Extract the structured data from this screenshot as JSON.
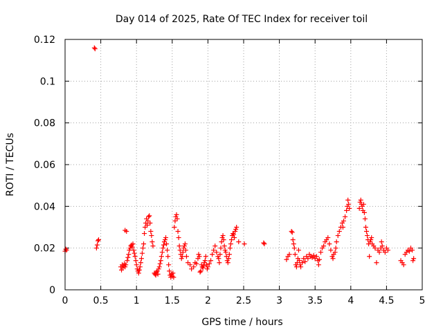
{
  "chart_data": {
    "type": "scatter",
    "title": "Day 014 of 2025, Rate Of TEC Index for receiver toil",
    "xlabel": "GPS time / hours",
    "ylabel": "ROTI / TECUs",
    "xlim": [
      0,
      5
    ],
    "ylim": [
      0,
      0.12
    ],
    "xticks": [
      0,
      0.5,
      1,
      1.5,
      2,
      2.5,
      3,
      3.5,
      4,
      4.5,
      5
    ],
    "xtick_labels": [
      "0",
      "0.5",
      "1",
      "1.5",
      "2",
      "2.5",
      "3",
      "3.5",
      "4",
      "4.5",
      "5"
    ],
    "yticks": [
      0,
      0.02,
      0.04,
      0.06,
      0.08,
      0.1,
      0.12
    ],
    "ytick_labels": [
      "0",
      "0.02",
      "0.04",
      "0.06",
      "0.08",
      "0.1",
      "0.12"
    ],
    "grid": true,
    "marker": "+",
    "color": "#ff0000",
    "series": [
      {
        "name": "ROTI",
        "points": [
          [
            0.0,
            0.0185
          ],
          [
            0.01,
            0.0195
          ],
          [
            0.02,
            0.019
          ],
          [
            0.41,
            0.116
          ],
          [
            0.42,
            0.1155
          ],
          [
            0.44,
            0.02
          ],
          [
            0.45,
            0.0215
          ],
          [
            0.46,
            0.0235
          ],
          [
            0.47,
            0.024
          ],
          [
            0.78,
            0.011
          ],
          [
            0.79,
            0.0095
          ],
          [
            0.8,
            0.012
          ],
          [
            0.81,
            0.0105
          ],
          [
            0.82,
            0.0115
          ],
          [
            0.83,
            0.0125
          ],
          [
            0.84,
            0.011
          ],
          [
            0.85,
            0.012
          ],
          [
            0.84,
            0.0285
          ],
          [
            0.86,
            0.028
          ],
          [
            0.87,
            0.014
          ],
          [
            0.88,
            0.0155
          ],
          [
            0.89,
            0.017
          ],
          [
            0.9,
            0.019
          ],
          [
            0.91,
            0.02
          ],
          [
            0.92,
            0.021
          ],
          [
            0.93,
            0.0215
          ],
          [
            0.94,
            0.0205
          ],
          [
            0.95,
            0.022
          ],
          [
            0.96,
            0.019
          ],
          [
            0.97,
            0.0175
          ],
          [
            0.98,
            0.016
          ],
          [
            0.99,
            0.014
          ],
          [
            1.0,
            0.012
          ],
          [
            1.01,
            0.01
          ],
          [
            1.02,
            0.009
          ],
          [
            1.03,
            0.008
          ],
          [
            1.04,
            0.0095
          ],
          [
            1.05,
            0.011
          ],
          [
            1.06,
            0.013
          ],
          [
            1.07,
            0.015
          ],
          [
            1.08,
            0.0175
          ],
          [
            1.09,
            0.02
          ],
          [
            1.1,
            0.022
          ],
          [
            1.11,
            0.027
          ],
          [
            1.12,
            0.03
          ],
          [
            1.13,
            0.032
          ],
          [
            1.14,
            0.034
          ],
          [
            1.15,
            0.031
          ],
          [
            1.16,
            0.033
          ],
          [
            1.17,
            0.035
          ],
          [
            1.18,
            0.0355
          ],
          [
            1.19,
            0.032
          ],
          [
            1.2,
            0.028
          ],
          [
            1.21,
            0.026
          ],
          [
            1.22,
            0.023
          ],
          [
            1.23,
            0.021
          ],
          [
            1.25,
            0.008
          ],
          [
            1.26,
            0.0075
          ],
          [
            1.27,
            0.007
          ],
          [
            1.28,
            0.0085
          ],
          [
            1.29,
            0.009
          ],
          [
            1.3,
            0.0075
          ],
          [
            1.31,
            0.01
          ],
          [
            1.32,
            0.011
          ],
          [
            1.33,
            0.0125
          ],
          [
            1.34,
            0.014
          ],
          [
            1.35,
            0.016
          ],
          [
            1.36,
            0.018
          ],
          [
            1.37,
            0.02
          ],
          [
            1.38,
            0.0215
          ],
          [
            1.39,
            0.023
          ],
          [
            1.4,
            0.024
          ],
          [
            1.41,
            0.025
          ],
          [
            1.42,
            0.022
          ],
          [
            1.43,
            0.019
          ],
          [
            1.44,
            0.016
          ],
          [
            1.45,
            0.012
          ],
          [
            1.46,
            0.009
          ],
          [
            1.47,
            0.007
          ],
          [
            1.48,
            0.006
          ],
          [
            1.49,
            0.0075
          ],
          [
            1.5,
            0.0065
          ],
          [
            1.51,
            0.008
          ],
          [
            1.52,
            0.006
          ],
          [
            1.53,
            0.03
          ],
          [
            1.54,
            0.033
          ],
          [
            1.55,
            0.035
          ],
          [
            1.56,
            0.036
          ],
          [
            1.57,
            0.034
          ],
          [
            1.58,
            0.028
          ],
          [
            1.59,
            0.025
          ],
          [
            1.6,
            0.021
          ],
          [
            1.61,
            0.019
          ],
          [
            1.62,
            0.017
          ],
          [
            1.63,
            0.015
          ],
          [
            1.64,
            0.016
          ],
          [
            1.65,
            0.018
          ],
          [
            1.66,
            0.02
          ],
          [
            1.67,
            0.021
          ],
          [
            1.68,
            0.022
          ],
          [
            1.69,
            0.019
          ],
          [
            1.7,
            0.016
          ],
          [
            1.72,
            0.013
          ],
          [
            1.75,
            0.012
          ],
          [
            1.77,
            0.01
          ],
          [
            1.8,
            0.011
          ],
          [
            1.82,
            0.013
          ],
          [
            1.84,
            0.0125
          ],
          [
            1.86,
            0.015
          ],
          [
            1.87,
            0.017
          ],
          [
            1.88,
            0.016
          ],
          [
            1.89,
            0.0085
          ],
          [
            1.9,
            0.009
          ],
          [
            1.91,
            0.012
          ],
          [
            1.92,
            0.011
          ],
          [
            1.93,
            0.0105
          ],
          [
            1.94,
            0.0115
          ],
          [
            1.95,
            0.013
          ],
          [
            1.96,
            0.014
          ],
          [
            1.97,
            0.016
          ],
          [
            1.98,
            0.012
          ],
          [
            1.99,
            0.01
          ],
          [
            2.0,
            0.011
          ],
          [
            2.02,
            0.0125
          ],
          [
            2.04,
            0.014
          ],
          [
            2.06,
            0.017
          ],
          [
            2.08,
            0.019
          ],
          [
            2.1,
            0.021
          ],
          [
            2.12,
            0.018
          ],
          [
            2.14,
            0.016
          ],
          [
            2.15,
            0.015
          ],
          [
            2.16,
            0.013
          ],
          [
            2.17,
            0.017
          ],
          [
            2.18,
            0.02
          ],
          [
            2.19,
            0.023
          ],
          [
            2.2,
            0.025
          ],
          [
            2.21,
            0.026
          ],
          [
            2.22,
            0.024
          ],
          [
            2.23,
            0.021
          ],
          [
            2.24,
            0.019
          ],
          [
            2.25,
            0.018
          ],
          [
            2.26,
            0.016
          ],
          [
            2.27,
            0.014
          ],
          [
            2.28,
            0.013
          ],
          [
            2.29,
            0.015
          ],
          [
            2.3,
            0.017
          ],
          [
            2.31,
            0.02
          ],
          [
            2.32,
            0.022
          ],
          [
            2.33,
            0.024
          ],
          [
            2.34,
            0.026
          ],
          [
            2.35,
            0.027
          ],
          [
            2.36,
            0.0265
          ],
          [
            2.37,
            0.025
          ],
          [
            2.38,
            0.028
          ],
          [
            2.39,
            0.029
          ],
          [
            2.4,
            0.03
          ],
          [
            2.43,
            0.023
          ],
          [
            2.51,
            0.022
          ],
          [
            2.78,
            0.0225
          ],
          [
            2.79,
            0.022
          ],
          [
            3.1,
            0.0145
          ],
          [
            3.12,
            0.016
          ],
          [
            3.14,
            0.017
          ],
          [
            3.17,
            0.028
          ],
          [
            3.18,
            0.0275
          ],
          [
            3.19,
            0.024
          ],
          [
            3.2,
            0.022
          ],
          [
            3.21,
            0.02
          ],
          [
            3.22,
            0.017
          ],
          [
            3.23,
            0.012
          ],
          [
            3.24,
            0.011
          ],
          [
            3.25,
            0.013
          ],
          [
            3.26,
            0.015
          ],
          [
            3.27,
            0.019
          ],
          [
            3.28,
            0.014
          ],
          [
            3.29,
            0.012
          ],
          [
            3.3,
            0.011
          ],
          [
            3.32,
            0.013
          ],
          [
            3.34,
            0.015
          ],
          [
            3.36,
            0.0135
          ],
          [
            3.38,
            0.016
          ],
          [
            3.4,
            0.015
          ],
          [
            3.42,
            0.017
          ],
          [
            3.44,
            0.016
          ],
          [
            3.46,
            0.0155
          ],
          [
            3.48,
            0.0165
          ],
          [
            3.5,
            0.015
          ],
          [
            3.52,
            0.016
          ],
          [
            3.54,
            0.014
          ],
          [
            3.55,
            0.012
          ],
          [
            3.56,
            0.0145
          ],
          [
            3.58,
            0.018
          ],
          [
            3.6,
            0.02
          ],
          [
            3.62,
            0.021
          ],
          [
            3.64,
            0.023
          ],
          [
            3.66,
            0.024
          ],
          [
            3.68,
            0.025
          ],
          [
            3.7,
            0.022
          ],
          [
            3.72,
            0.019
          ],
          [
            3.74,
            0.016
          ],
          [
            3.75,
            0.015
          ],
          [
            3.76,
            0.017
          ],
          [
            3.78,
            0.018
          ],
          [
            3.79,
            0.02
          ],
          [
            3.8,
            0.023
          ],
          [
            3.82,
            0.026
          ],
          [
            3.84,
            0.028
          ],
          [
            3.86,
            0.03
          ],
          [
            3.88,
            0.032
          ],
          [
            3.89,
            0.03
          ],
          [
            3.9,
            0.033
          ],
          [
            3.92,
            0.035
          ],
          [
            3.94,
            0.038
          ],
          [
            3.95,
            0.04
          ],
          [
            3.96,
            0.043
          ],
          [
            3.97,
            0.041
          ],
          [
            3.98,
            0.039
          ],
          [
            4.12,
            0.039
          ],
          [
            4.13,
            0.042
          ],
          [
            4.14,
            0.043
          ],
          [
            4.15,
            0.041
          ],
          [
            4.16,
            0.04
          ],
          [
            4.17,
            0.038
          ],
          [
            4.18,
            0.041
          ],
          [
            4.19,
            0.037
          ],
          [
            4.2,
            0.034
          ],
          [
            4.21,
            0.03
          ],
          [
            4.22,
            0.028
          ],
          [
            4.23,
            0.026
          ],
          [
            4.24,
            0.024
          ],
          [
            4.25,
            0.022
          ],
          [
            4.26,
            0.016
          ],
          [
            4.27,
            0.023
          ],
          [
            4.28,
            0.024
          ],
          [
            4.29,
            0.025
          ],
          [
            4.3,
            0.022
          ],
          [
            4.32,
            0.021
          ],
          [
            4.34,
            0.02
          ],
          [
            4.36,
            0.013
          ],
          [
            4.38,
            0.019
          ],
          [
            4.4,
            0.018
          ],
          [
            4.42,
            0.02
          ],
          [
            4.43,
            0.023
          ],
          [
            4.44,
            0.021
          ],
          [
            4.46,
            0.019
          ],
          [
            4.48,
            0.018
          ],
          [
            4.5,
            0.02
          ],
          [
            4.52,
            0.019
          ],
          [
            4.7,
            0.014
          ],
          [
            4.72,
            0.013
          ],
          [
            4.74,
            0.012
          ],
          [
            4.76,
            0.017
          ],
          [
            4.78,
            0.018
          ],
          [
            4.8,
            0.019
          ],
          [
            4.82,
            0.0185
          ],
          [
            4.84,
            0.02
          ],
          [
            4.86,
            0.019
          ],
          [
            4.87,
            0.014
          ],
          [
            4.88,
            0.015
          ]
        ]
      }
    ]
  }
}
